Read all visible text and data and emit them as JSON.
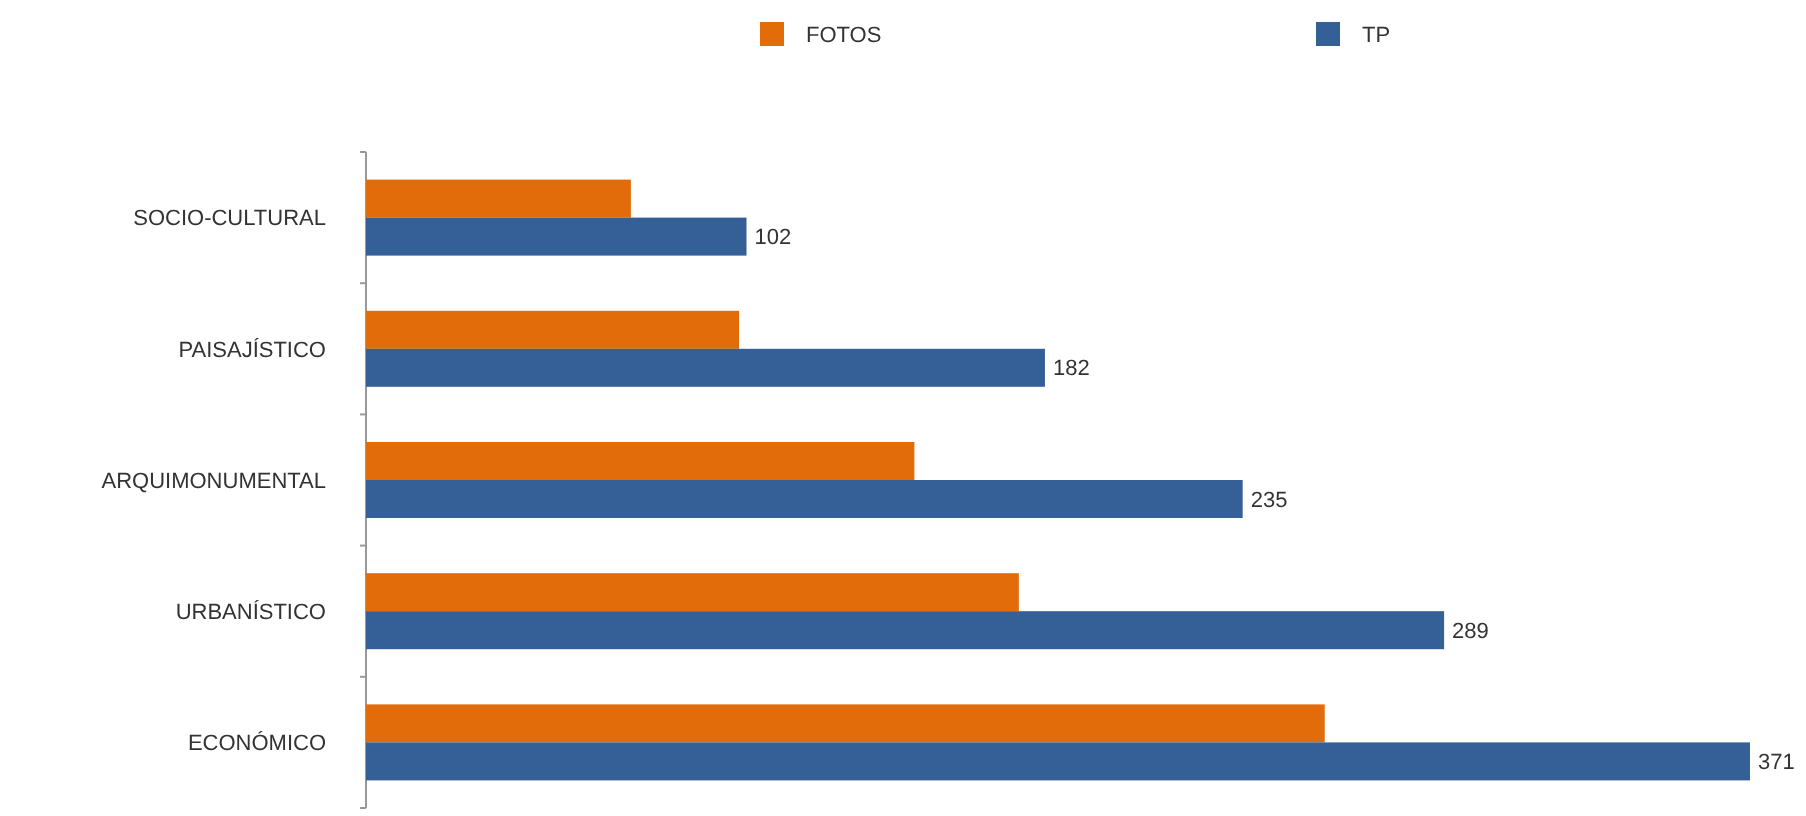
{
  "chart_data": {
    "type": "bar",
    "orientation": "horizontal",
    "categories": [
      "SOCIO-CULTURAL",
      "PAISAJÍSTICO",
      "ARQUIMONUMENTAL",
      "URBANÍSTICO",
      "ECONÓMICO"
    ],
    "series": [
      {
        "name": "FOTOS",
        "color": "#e36c0a",
        "values": [
          71,
          100,
          147,
          175,
          257
        ]
      },
      {
        "name": "TP",
        "color": "#355f97",
        "values": [
          102,
          182,
          235,
          289,
          371
        ],
        "value_labels": [
          "102",
          "182",
          "235",
          "289",
          "371"
        ]
      }
    ],
    "legend": "top"
  }
}
